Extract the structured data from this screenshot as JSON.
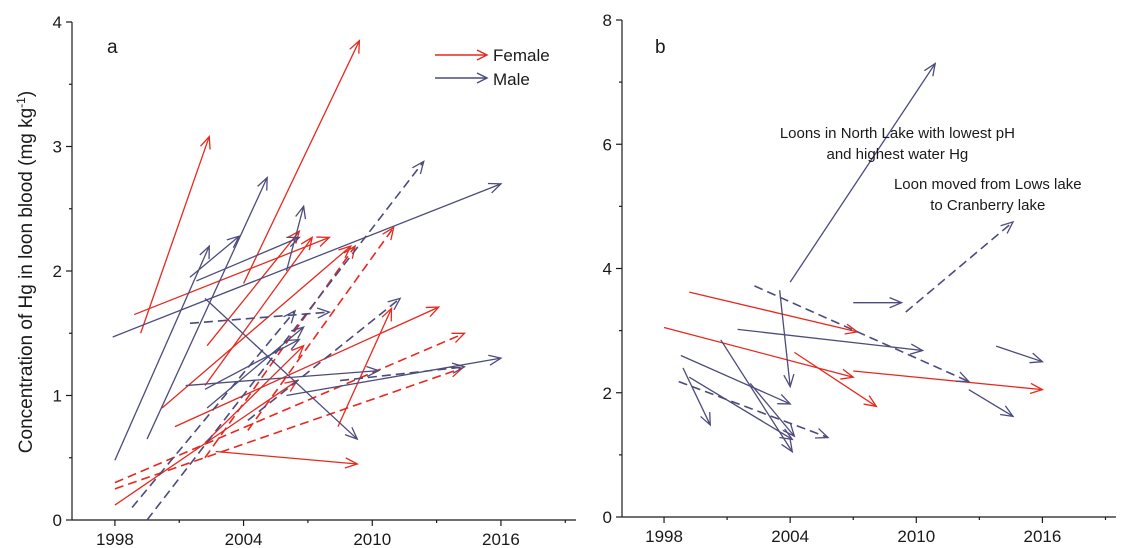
{
  "colors": {
    "female": "#e8281e",
    "male": "#4b4c7c",
    "axis": "#1a1a1a"
  },
  "ylabel": {
    "prefix": "Concentration of Hg in loon blood (mg kg",
    "sup": "-1",
    "suffix": ")"
  },
  "chart_data": [
    {
      "type": "line",
      "panel": "a",
      "xlim": [
        1996,
        2019.5
      ],
      "ylim": [
        0,
        4
      ],
      "xticks": [
        1998,
        2004,
        2010,
        2016
      ],
      "yticks": [
        0,
        1,
        2,
        3,
        4
      ],
      "title": "",
      "xlabel": "",
      "ylabel": "Concentration of Hg in loon blood (mg kg-1)",
      "grid": false,
      "legend": {
        "position": "top-right",
        "entries": [
          {
            "name": "Female",
            "color": "#e8281e"
          },
          {
            "name": "Male",
            "color": "#4b4c7c"
          }
        ]
      },
      "series": [
        {
          "name": "Female",
          "color": "#e8281e",
          "style": "solid",
          "arrows": [
            [
              1999.2,
              1.5,
              2002.4,
              3.08
            ],
            [
              1998.9,
              1.65,
              2008,
              2.27
            ],
            [
              2004,
              1.9,
              2009.4,
              3.85
            ],
            [
              2002.3,
              1.4,
              2006.6,
              2.32
            ],
            [
              2000.2,
              0.9,
              2009,
              2.2
            ],
            [
              2002.2,
              1.08,
              2007.2,
              2.27
            ],
            [
              2000.8,
              0.75,
              2013.1,
              1.71
            ],
            [
              2008.4,
              0.75,
              2010.9,
              1.7
            ],
            [
              2002.2,
              0.62,
              2006.8,
              1.4
            ],
            [
              2002.7,
              0.55,
              2009.3,
              0.45
            ],
            [
              1998,
              0.12,
              2006.5,
              1.12
            ]
          ]
        },
        {
          "name": "Female",
          "color": "#e8281e",
          "style": "dashed",
          "arrows": [
            [
              2002.2,
              0.5,
              2009.2,
              2.2
            ],
            [
              2004.2,
              0.72,
              2011,
              2.35
            ],
            [
              1998,
              0.3,
              2014.3,
              1.5
            ],
            [
              1998,
              0.25,
              2014.2,
              1.22
            ]
          ]
        },
        {
          "name": "Male",
          "color": "#4b4c7c",
          "style": "solid",
          "arrows": [
            [
              1997.9,
              1.47,
              2016,
              2.7
            ],
            [
              1998,
              0.48,
              2002.4,
              2.2
            ],
            [
              1999.5,
              0.65,
              2005.1,
              2.75
            ],
            [
              2001.8,
              1.92,
              2006.6,
              2.27
            ],
            [
              2001.5,
              1.95,
              2003.8,
              2.28
            ],
            [
              2006,
              2.0,
              2006.8,
              2.52
            ],
            [
              2002.2,
              1.78,
              2009.3,
              0.65
            ],
            [
              2001.3,
              1.08,
              2010.3,
              1.2
            ],
            [
              2002.3,
              0.9,
              2006.8,
              1.55
            ],
            [
              2002.2,
              1.05,
              2006.6,
              1.45
            ],
            [
              2006,
              1.0,
              2016,
              1.3
            ]
          ]
        },
        {
          "name": "Male",
          "color": "#4b4c7c",
          "style": "dashed",
          "arrows": [
            [
              1999.5,
              0.0,
              2012.4,
              2.88
            ],
            [
              2001.5,
              1.58,
              2008,
              1.67
            ],
            [
              2004.2,
              0.8,
              2011.3,
              1.78
            ],
            [
              1998.8,
              0.1,
              2006.4,
              1.68
            ],
            [
              2008.5,
              1.12,
              2014.3,
              1.23
            ]
          ]
        }
      ],
      "annotations": []
    },
    {
      "type": "line",
      "panel": "b",
      "xlim": [
        1996,
        2019.5
      ],
      "ylim": [
        0,
        8
      ],
      "xticks": [
        1998,
        2004,
        2010,
        2016
      ],
      "yticks": [
        0,
        2,
        4,
        6,
        8
      ],
      "title": "",
      "xlabel": "",
      "ylabel": "",
      "grid": false,
      "series": [
        {
          "name": "Female",
          "color": "#e8281e",
          "style": "solid",
          "arrows": [
            [
              1998,
              3.05,
              2007,
              2.25
            ],
            [
              1999.2,
              3.62,
              2007.2,
              2.98
            ],
            [
              2004.2,
              2.65,
              2008.1,
              1.78
            ],
            [
              2007,
              2.35,
              2016,
              2.05
            ]
          ]
        },
        {
          "name": "Male",
          "color": "#4b4c7c",
          "style": "solid",
          "arrows": [
            [
              2004,
              3.78,
              2010.9,
              7.3
            ],
            [
              2001.5,
              3.02,
              2010.3,
              2.68
            ],
            [
              2003.5,
              3.65,
              2004,
              2.1
            ],
            [
              2007,
              3.45,
              2009.3,
              3.45
            ],
            [
              2013.8,
              2.75,
              2016,
              2.5
            ],
            [
              1998.8,
              2.6,
              2004,
              1.82
            ],
            [
              1998.9,
              2.4,
              2000.2,
              1.48
            ],
            [
              1999.2,
              2.25,
              2004.1,
              1.25
            ],
            [
              2000.7,
              2.85,
              2004.1,
              1.05
            ],
            [
              2002.1,
              2.15,
              2004.2,
              1.3
            ],
            [
              2012.5,
              2.05,
              2014.6,
              1.62
            ]
          ]
        },
        {
          "name": "Male",
          "color": "#4b4c7c",
          "style": "dashed",
          "arrows": [
            [
              2002.3,
              3.72,
              2012.5,
              2.18
            ],
            [
              2009.5,
              3.3,
              2014.6,
              4.75
            ],
            [
              1998.7,
              2.18,
              2005.8,
              1.28
            ]
          ]
        }
      ],
      "annotations": [
        {
          "lines": [
            "Loons in North Lake with lowest pH",
            "and highest water Hg"
          ],
          "x": 2009.1,
          "y": 6.1
        },
        {
          "lines": [
            "Loon moved from Lows lake",
            "to Cranberry lake"
          ],
          "x": 2013.4,
          "y": 5.28
        }
      ]
    }
  ]
}
